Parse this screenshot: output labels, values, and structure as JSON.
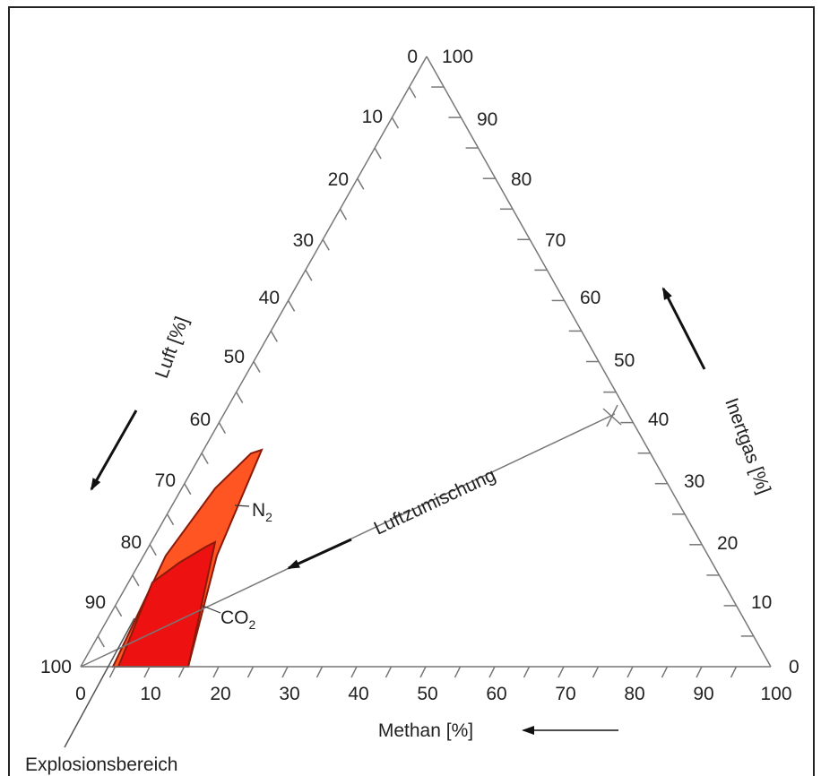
{
  "diagram": {
    "type": "ternary",
    "axes": {
      "bottom": {
        "title": "Methan [%]",
        "ticks": [
          "0",
          "10",
          "20",
          "30",
          "40",
          "50",
          "60",
          "70",
          "80",
          "90",
          "100"
        ]
      },
      "left": {
        "title": "Luft [%]",
        "ticks": [
          "100",
          "90",
          "80",
          "70",
          "60",
          "50",
          "40",
          "30",
          "20",
          "10",
          "0"
        ]
      },
      "right": {
        "title": "Inertgas [%]",
        "ticks": [
          "0",
          "10",
          "20",
          "30",
          "40",
          "50",
          "60",
          "70",
          "80",
          "90",
          "100"
        ]
      }
    },
    "regions": [
      {
        "label": "N",
        "subscript": "2",
        "color": "#ff5522",
        "stroke": "#8b1a0a"
      },
      {
        "label": "CO",
        "subscript": "2",
        "color": "#ee1111",
        "stroke": "#8b1a0a"
      }
    ],
    "annotations": {
      "mixing_line": "Luftzumischung",
      "explosion_area": "Explosionsbereich"
    },
    "colors": {
      "axis": "#777777",
      "arrow": "#111111",
      "frame": "#222222"
    }
  }
}
